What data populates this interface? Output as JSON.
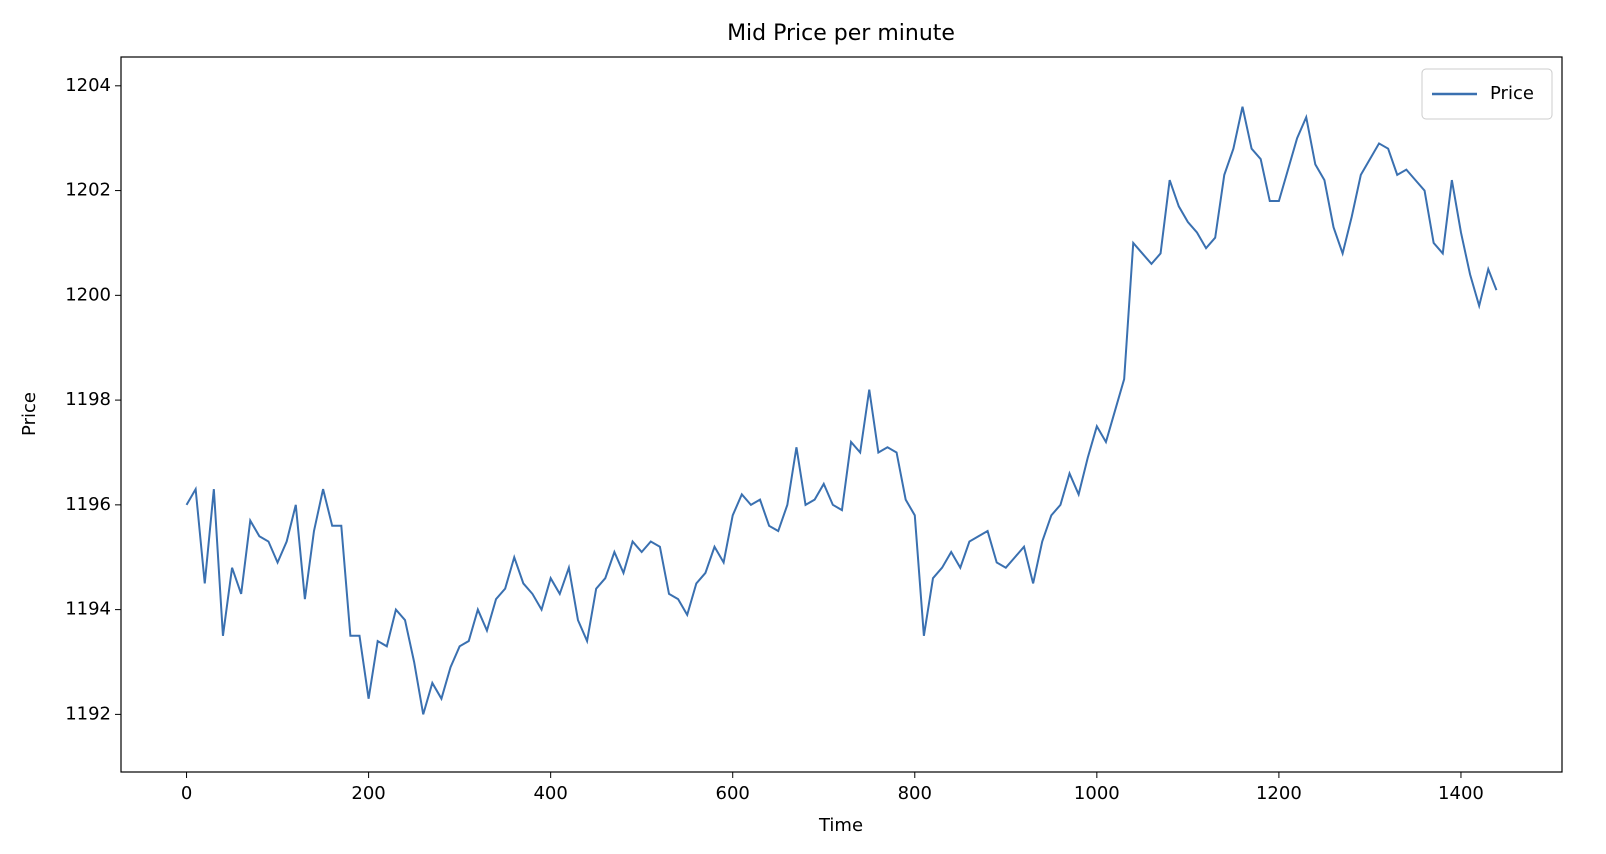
{
  "chart_data": {
    "type": "line",
    "title": "Mid Price per minute",
    "x_label": "Time",
    "y_label": "Price",
    "x": [
      0,
      10,
      20,
      30,
      40,
      50,
      60,
      70,
      80,
      90,
      100,
      110,
      120,
      130,
      140,
      150,
      160,
      170,
      180,
      190,
      200,
      210,
      220,
      230,
      240,
      250,
      260,
      270,
      280,
      290,
      300,
      310,
      320,
      330,
      340,
      350,
      360,
      370,
      380,
      390,
      400,
      410,
      420,
      430,
      440,
      450,
      460,
      470,
      480,
      490,
      500,
      510,
      520,
      530,
      540,
      550,
      560,
      570,
      580,
      590,
      600,
      610,
      620,
      630,
      640,
      650,
      660,
      670,
      680,
      690,
      700,
      710,
      720,
      730,
      740,
      750,
      760,
      770,
      780,
      790,
      800,
      810,
      820,
      830,
      840,
      850,
      860,
      870,
      880,
      890,
      900,
      910,
      920,
      930,
      940,
      950,
      960,
      970,
      980,
      990,
      1000,
      1010,
      1020,
      1030,
      1040,
      1050,
      1060,
      1070,
      1080,
      1090,
      1100,
      1110,
      1120,
      1130,
      1140,
      1150,
      1160,
      1170,
      1180,
      1190,
      1200,
      1210,
      1220,
      1230,
      1240,
      1250,
      1260,
      1270,
      1280,
      1290,
      1300,
      1310,
      1320,
      1330,
      1340,
      1350,
      1360,
      1370,
      1380,
      1390,
      1400,
      1410,
      1420,
      1430,
      1439
    ],
    "series": [
      {
        "name": "Price",
        "color": "#3a70b0",
        "values": [
          1196.0,
          1196.3,
          1194.5,
          1196.3,
          1193.5,
          1194.8,
          1194.3,
          1195.7,
          1195.4,
          1195.3,
          1194.9,
          1195.3,
          1196.0,
          1194.2,
          1195.5,
          1196.3,
          1195.6,
          1195.6,
          1193.5,
          1193.5,
          1192.3,
          1193.4,
          1193.3,
          1194.0,
          1193.8,
          1193.0,
          1192.0,
          1192.6,
          1192.3,
          1192.9,
          1193.3,
          1193.4,
          1194.0,
          1193.6,
          1194.2,
          1194.4,
          1195.0,
          1194.5,
          1194.3,
          1194.0,
          1194.6,
          1194.3,
          1194.8,
          1193.8,
          1193.4,
          1194.4,
          1194.6,
          1195.1,
          1194.7,
          1195.3,
          1195.1,
          1195.3,
          1195.2,
          1194.3,
          1194.2,
          1193.9,
          1194.5,
          1194.7,
          1195.2,
          1194.9,
          1195.8,
          1196.2,
          1196.0,
          1196.1,
          1195.6,
          1195.5,
          1196.0,
          1197.1,
          1196.0,
          1196.1,
          1196.4,
          1196.0,
          1195.9,
          1197.2,
          1197.0,
          1198.2,
          1197.0,
          1197.1,
          1197.0,
          1196.1,
          1195.8,
          1193.5,
          1194.6,
          1194.8,
          1195.1,
          1194.8,
          1195.3,
          1195.4,
          1195.5,
          1194.9,
          1194.8,
          1195.0,
          1195.2,
          1194.5,
          1195.3,
          1195.8,
          1196.0,
          1196.6,
          1196.2,
          1196.9,
          1197.5,
          1197.2,
          1197.8,
          1198.4,
          1201.0,
          1200.8,
          1200.6,
          1200.8,
          1202.2,
          1201.7,
          1201.4,
          1201.2,
          1200.9,
          1201.1,
          1202.3,
          1202.8,
          1203.6,
          1202.8,
          1202.6,
          1201.8,
          1201.8,
          1202.4,
          1203.0,
          1203.4,
          1202.5,
          1202.2,
          1201.3,
          1200.8,
          1201.5,
          1202.3,
          1202.6,
          1202.9,
          1202.8,
          1202.3,
          1202.4,
          1202.2,
          1202.0,
          1201.0,
          1200.8,
          1202.2,
          1201.2,
          1200.4,
          1199.8,
          1200.5,
          1200.1
        ]
      }
    ],
    "xlim": [
      -72,
      1511
    ],
    "xticks": [
      0,
      200,
      400,
      600,
      800,
      1000,
      1200,
      1400
    ],
    "ylim": [
      1190.9,
      1204.55
    ],
    "yticks": [
      1192,
      1194,
      1196,
      1198,
      1200,
      1202,
      1204
    ],
    "legend": "upper right",
    "grid": false
  }
}
